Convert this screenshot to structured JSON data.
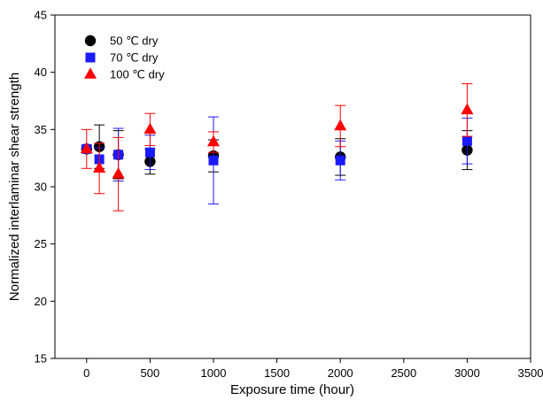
{
  "chart_data": {
    "type": "scatter",
    "title": "",
    "xlabel": "Exposure time (hour)",
    "ylabel": "Normalized interlaminar shear strength",
    "xlim": [
      -250,
      3500
    ],
    "ylim": [
      15,
      45
    ],
    "xticks": [
      0,
      500,
      1000,
      1500,
      2000,
      2500,
      3000,
      3500
    ],
    "yticks": [
      15,
      20,
      25,
      30,
      35,
      40,
      45
    ],
    "grid": false,
    "legend_position": "top-left",
    "series": [
      {
        "name": "50 ℃ dry",
        "marker": "circle",
        "color": "#000000",
        "x": [
          0,
          100,
          250,
          500,
          1000,
          2000,
          3000
        ],
        "y": [
          33.3,
          33.5,
          32.8,
          32.2,
          32.7,
          32.6,
          33.2
        ],
        "err": [
          0.3,
          1.9,
          2.1,
          1.1,
          1.4,
          1.6,
          1.7
        ]
      },
      {
        "name": "70 ℃ dry",
        "marker": "square",
        "color": "#1a1aff",
        "x": [
          0,
          100,
          250,
          500,
          1000,
          2000,
          3000
        ],
        "y": [
          33.3,
          32.4,
          32.8,
          33.0,
          32.3,
          32.3,
          34.0
        ],
        "err": [
          0.3,
          1.0,
          2.3,
          1.5,
          3.8,
          1.7,
          2.0
        ]
      },
      {
        "name": "100 ℃ dry",
        "marker": "triangle",
        "color": "#ff0000",
        "x": [
          0,
          100,
          250,
          500,
          1000,
          2000,
          3000
        ],
        "y": [
          33.3,
          31.6,
          31.1,
          35.0,
          33.9,
          35.3,
          36.7
        ],
        "err": [
          1.7,
          2.2,
          3.2,
          1.4,
          0.9,
          1.8,
          2.3
        ]
      }
    ]
  }
}
